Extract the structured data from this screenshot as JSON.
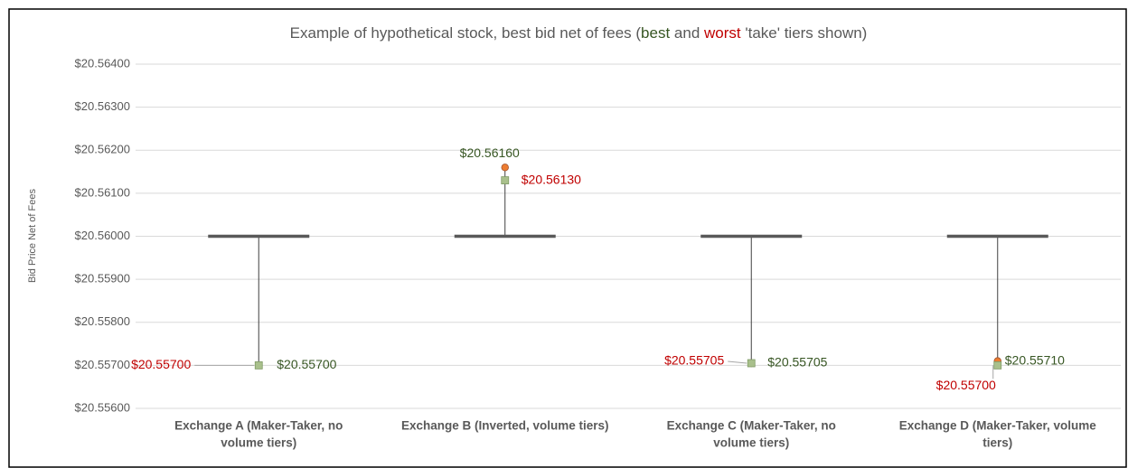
{
  "chart_data": {
    "type": "high-low",
    "title": [
      "Example of hypothetical stock, best bid net of fees (",
      "best",
      " and ",
      "worst",
      " 'take' tiers shown)"
    ],
    "ylabel": "Bid Price Net of Fees",
    "categories": [
      [
        "Exchange A (Maker-Taker, no",
        "volume tiers)"
      ],
      [
        "Exchange B (Inverted, volume tiers)"
      ],
      [
        "Exchange C (Maker-Taker, no",
        "volume tiers)"
      ],
      [
        "Exchange D (Maker-Taker, volume",
        "tiers)"
      ]
    ],
    "series": [
      {
        "name": "bid",
        "color": "#595959",
        "values": [
          20.56,
          20.56,
          20.56,
          20.56
        ]
      },
      {
        "name": "best",
        "color": "#ed7d31",
        "label_color": "#375623",
        "marker": "circle",
        "values": [
          20.557,
          20.5616,
          20.55705,
          20.5571
        ],
        "value_labels": [
          "$20.55700",
          "$20.56160",
          "$20.55705",
          "$20.55710"
        ]
      },
      {
        "name": "worst",
        "color": "#a9c08c",
        "label_color": "#c00000",
        "marker": "square",
        "values": [
          20.557,
          20.5613,
          20.55705,
          20.557
        ],
        "value_labels": [
          "$20.55700",
          "$20.56130",
          "$20.55705",
          "$20.55700"
        ]
      }
    ],
    "ylim": [
      20.556,
      20.564
    ],
    "yticks": [
      {
        "value": 20.556,
        "label": "$20.55600"
      },
      {
        "value": 20.557,
        "label": "$20.55700"
      },
      {
        "value": 20.558,
        "label": "$20.55800"
      },
      {
        "value": 20.559,
        "label": "$20.55900"
      },
      {
        "value": 20.56,
        "label": "$20.56000"
      },
      {
        "value": 20.561,
        "label": "$20.56100"
      },
      {
        "value": 20.562,
        "label": "$20.56200"
      },
      {
        "value": 20.563,
        "label": "$20.56300"
      },
      {
        "value": 20.564,
        "label": "$20.56400"
      }
    ],
    "grid": true
  }
}
